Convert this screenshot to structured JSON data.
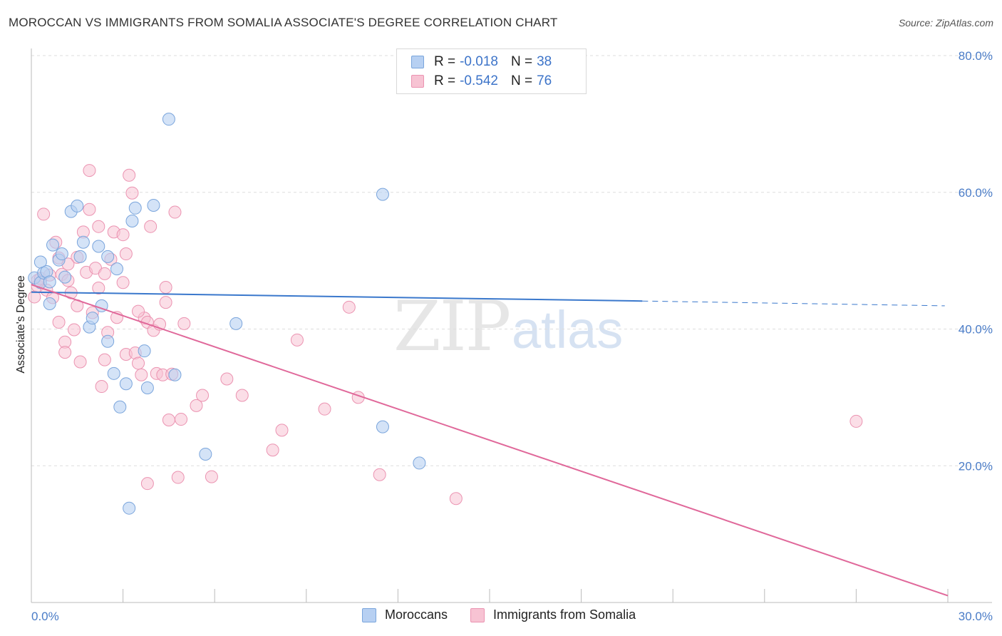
{
  "title": "MOROCCAN VS IMMIGRANTS FROM SOMALIA ASSOCIATE'S DEGREE CORRELATION CHART",
  "source": "Source: ZipAtlas.com",
  "watermark": {
    "zip": "ZIP",
    "atlas": "atlas"
  },
  "legend": {
    "rows": [
      {
        "r_label": "R =",
        "r_value": "-0.018",
        "n_label": "N =",
        "n_value": "38"
      },
      {
        "r_label": "R =",
        "r_value": "-0.542",
        "n_label": "N =",
        "n_value": "76"
      }
    ]
  },
  "bottom_legend": [
    "Moroccans",
    "Immigrants from Somalia"
  ],
  "colors": {
    "blue_fill": "#b7d0f2",
    "blue_stroke": "#7aa5dc",
    "blue_line": "#3a78cc",
    "pink_fill": "#f7c3d3",
    "pink_stroke": "#eb93b1",
    "pink_line": "#e0689a",
    "grid": "#dedede",
    "axis_text": "#4a7cc7"
  },
  "chart_data": {
    "type": "scatter",
    "title": "MOROCCAN VS IMMIGRANTS FROM SOMALIA ASSOCIATE'S DEGREE CORRELATION CHART",
    "xlabel": "",
    "ylabel": "Associate's Degree",
    "xlim": [
      0,
      30
    ],
    "ylim": [
      0,
      80
    ],
    "x_tick_labels": [
      {
        "value": 0,
        "label": "0.0%"
      },
      {
        "value": 30,
        "label": "30.0%"
      }
    ],
    "y_tick_labels": [
      {
        "value": 20,
        "label": "20.0%"
      },
      {
        "value": 40,
        "label": "40.0%"
      },
      {
        "value": 60,
        "label": "60.0%"
      },
      {
        "value": 80,
        "label": "80.0%"
      }
    ],
    "series": [
      {
        "name": "Moroccans",
        "color": "#b7d0f2",
        "points": [
          [
            0.1,
            47.5
          ],
          [
            0.3,
            46.8
          ],
          [
            0.3,
            49.8
          ],
          [
            0.4,
            48.2
          ],
          [
            0.5,
            48.4
          ],
          [
            0.6,
            46.9
          ],
          [
            0.6,
            43.7
          ],
          [
            0.7,
            52.3
          ],
          [
            0.9,
            50.1
          ],
          [
            1.0,
            51.0
          ],
          [
            1.1,
            47.6
          ],
          [
            1.3,
            57.2
          ],
          [
            1.5,
            58.0
          ],
          [
            1.6,
            50.6
          ],
          [
            1.7,
            52.7
          ],
          [
            1.9,
            40.3
          ],
          [
            2.0,
            41.6
          ],
          [
            2.2,
            52.1
          ],
          [
            2.3,
            43.4
          ],
          [
            2.5,
            38.2
          ],
          [
            2.5,
            50.6
          ],
          [
            2.7,
            33.5
          ],
          [
            2.8,
            48.8
          ],
          [
            2.9,
            28.6
          ],
          [
            3.1,
            32.0
          ],
          [
            3.2,
            13.8
          ],
          [
            3.3,
            55.8
          ],
          [
            3.4,
            57.7
          ],
          [
            3.7,
            36.8
          ],
          [
            3.8,
            31.4
          ],
          [
            4.0,
            58.1
          ],
          [
            4.5,
            70.7
          ],
          [
            4.7,
            33.3
          ],
          [
            5.7,
            21.7
          ],
          [
            6.7,
            40.8
          ],
          [
            11.5,
            25.7
          ],
          [
            11.5,
            59.7
          ],
          [
            12.7,
            20.4
          ]
        ],
        "trend": {
          "x_start": 0,
          "y_start": 45.4,
          "x_solid_end": 20.0,
          "y_solid_end": 44.1,
          "x_dash_end": 29.9,
          "y_dash_end": 43.4
        }
      },
      {
        "name": "Immigrants from Somalia",
        "color": "#f7c3d3",
        "points": [
          [
            0.1,
            44.7
          ],
          [
            0.2,
            46.3
          ],
          [
            0.2,
            47.1
          ],
          [
            0.3,
            47.4
          ],
          [
            0.4,
            56.8
          ],
          [
            0.5,
            45.7
          ],
          [
            0.6,
            47.9
          ],
          [
            0.7,
            44.6
          ],
          [
            0.8,
            52.7
          ],
          [
            0.9,
            41.0
          ],
          [
            1.0,
            48.0
          ],
          [
            1.1,
            38.1
          ],
          [
            1.1,
            36.6
          ],
          [
            1.2,
            47.1
          ],
          [
            1.3,
            45.3
          ],
          [
            1.4,
            39.9
          ],
          [
            1.5,
            50.5
          ],
          [
            1.6,
            35.2
          ],
          [
            1.7,
            54.2
          ],
          [
            1.8,
            48.3
          ],
          [
            1.9,
            63.2
          ],
          [
            1.9,
            57.5
          ],
          [
            2.0,
            42.4
          ],
          [
            2.1,
            48.9
          ],
          [
            2.2,
            55.0
          ],
          [
            2.3,
            31.6
          ],
          [
            2.4,
            48.1
          ],
          [
            2.5,
            39.5
          ],
          [
            2.6,
            50.2
          ],
          [
            2.7,
            54.2
          ],
          [
            2.8,
            41.7
          ],
          [
            3.0,
            46.8
          ],
          [
            3.1,
            36.3
          ],
          [
            3.1,
            51.0
          ],
          [
            3.2,
            62.5
          ],
          [
            3.3,
            59.9
          ],
          [
            3.4,
            36.5
          ],
          [
            3.5,
            35.0
          ],
          [
            3.6,
            33.3
          ],
          [
            3.7,
            41.6
          ],
          [
            3.8,
            17.4
          ],
          [
            3.8,
            41.0
          ],
          [
            3.9,
            55.0
          ],
          [
            4.0,
            39.8
          ],
          [
            4.1,
            33.5
          ],
          [
            4.2,
            40.7
          ],
          [
            4.3,
            33.3
          ],
          [
            4.4,
            46.1
          ],
          [
            4.5,
            26.7
          ],
          [
            4.6,
            33.4
          ],
          [
            4.7,
            57.1
          ],
          [
            4.8,
            18.3
          ],
          [
            4.9,
            26.8
          ],
          [
            5.0,
            40.8
          ],
          [
            5.4,
            28.8
          ],
          [
            5.6,
            30.3
          ],
          [
            5.9,
            18.4
          ],
          [
            6.4,
            32.7
          ],
          [
            6.9,
            30.3
          ],
          [
            7.9,
            22.3
          ],
          [
            8.2,
            25.2
          ],
          [
            8.7,
            38.4
          ],
          [
            9.6,
            28.3
          ],
          [
            10.4,
            43.2
          ],
          [
            10.7,
            30.0
          ],
          [
            11.4,
            18.7
          ],
          [
            13.9,
            15.2
          ],
          [
            27.0,
            26.5
          ],
          [
            1.5,
            43.4
          ],
          [
            2.4,
            35.5
          ],
          [
            3.5,
            42.6
          ],
          [
            0.9,
            50.4
          ],
          [
            1.2,
            49.5
          ],
          [
            2.2,
            46.0
          ],
          [
            3.0,
            53.8
          ],
          [
            4.4,
            43.9
          ]
        ],
        "trend": {
          "x_start": 0,
          "y_start": 46.5,
          "x_end": 30.0,
          "y_end": 1.0
        }
      }
    ]
  }
}
